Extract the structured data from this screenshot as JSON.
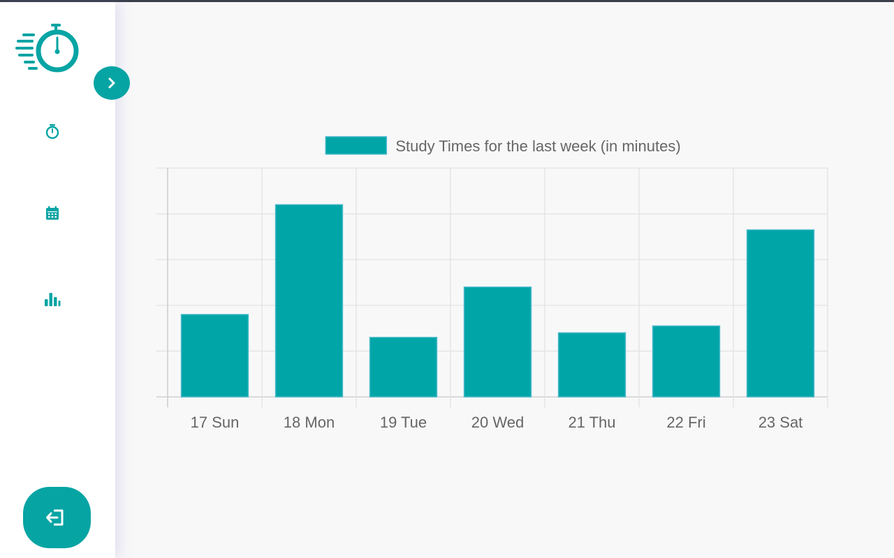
{
  "sidebar": {
    "logo_icon": "stopwatch-speed-logo",
    "toggle_icon": "chevron-right-icon",
    "nav_items": [
      {
        "name": "timer",
        "icon": "stopwatch-icon"
      },
      {
        "name": "calendar",
        "icon": "calendar-icon"
      },
      {
        "name": "statistics",
        "icon": "bar-chart-icon"
      }
    ],
    "logout_icon": "logout-icon"
  },
  "colors": {
    "accent": "#07a4a4",
    "bar_fill": "#00a5a7",
    "text": "#666666",
    "grid": "#e1e1e1"
  },
  "chart_data": {
    "type": "bar",
    "categories": [
      "17 Sun",
      "18 Mon",
      "19 Tue",
      "20 Wed",
      "21 Thu",
      "22 Fri",
      "23 Sat"
    ],
    "series": [
      {
        "name": "Study Times for the last week (in minutes)",
        "values": [
          36,
          84,
          26,
          48,
          28,
          31,
          73
        ]
      }
    ],
    "ylim": [
      0,
      100
    ],
    "y_tick_count": 5,
    "grid": true,
    "y_tick_labels_visible": false,
    "legend_position": "top-center"
  }
}
